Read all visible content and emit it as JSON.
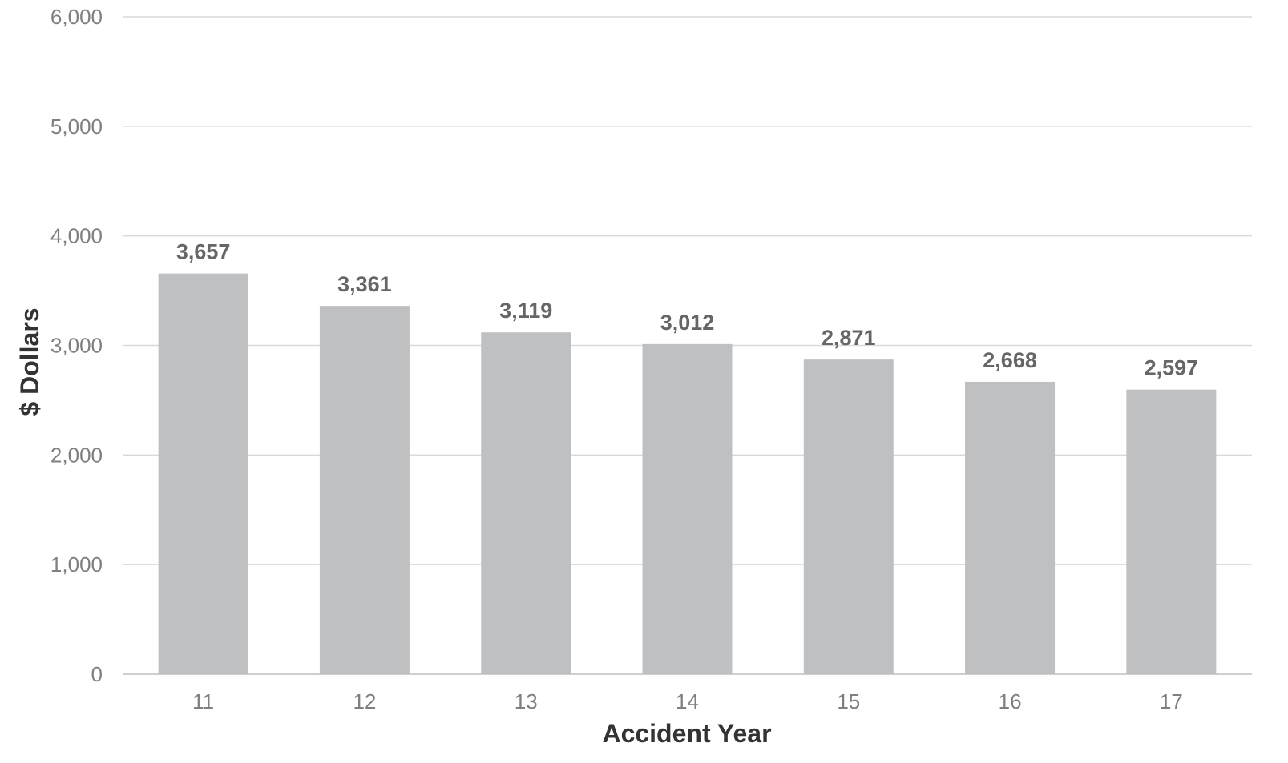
{
  "chart_data": {
    "type": "bar",
    "title": "",
    "xlabel": "Accident Year",
    "ylabel": "$ Dollars",
    "categories": [
      "11",
      "12",
      "13",
      "14",
      "15",
      "16",
      "17"
    ],
    "series": [
      {
        "values": [
          3657,
          3361,
          3119,
          3012,
          2871,
          2668,
          2597
        ]
      }
    ],
    "data_labels": [
      "3,657",
      "3,361",
      "3,119",
      "3,012",
      "2,871",
      "2,668",
      "2,597"
    ],
    "ylim": [
      0,
      6000
    ],
    "yticks": [
      0,
      1000,
      2000,
      3000,
      4000,
      5000,
      6000
    ],
    "ytick_labels": [
      "0",
      "1,000",
      "2,000",
      "3,000",
      "4,000",
      "5,000",
      "6,000"
    ],
    "grid": true,
    "legend": "none",
    "colors": {
      "bar": "#bfc0c2",
      "grid": "#d9d9d9",
      "tick_text": "#7f7f7f",
      "data_label_text": "#666666",
      "axis_title_text": "#333333"
    }
  }
}
